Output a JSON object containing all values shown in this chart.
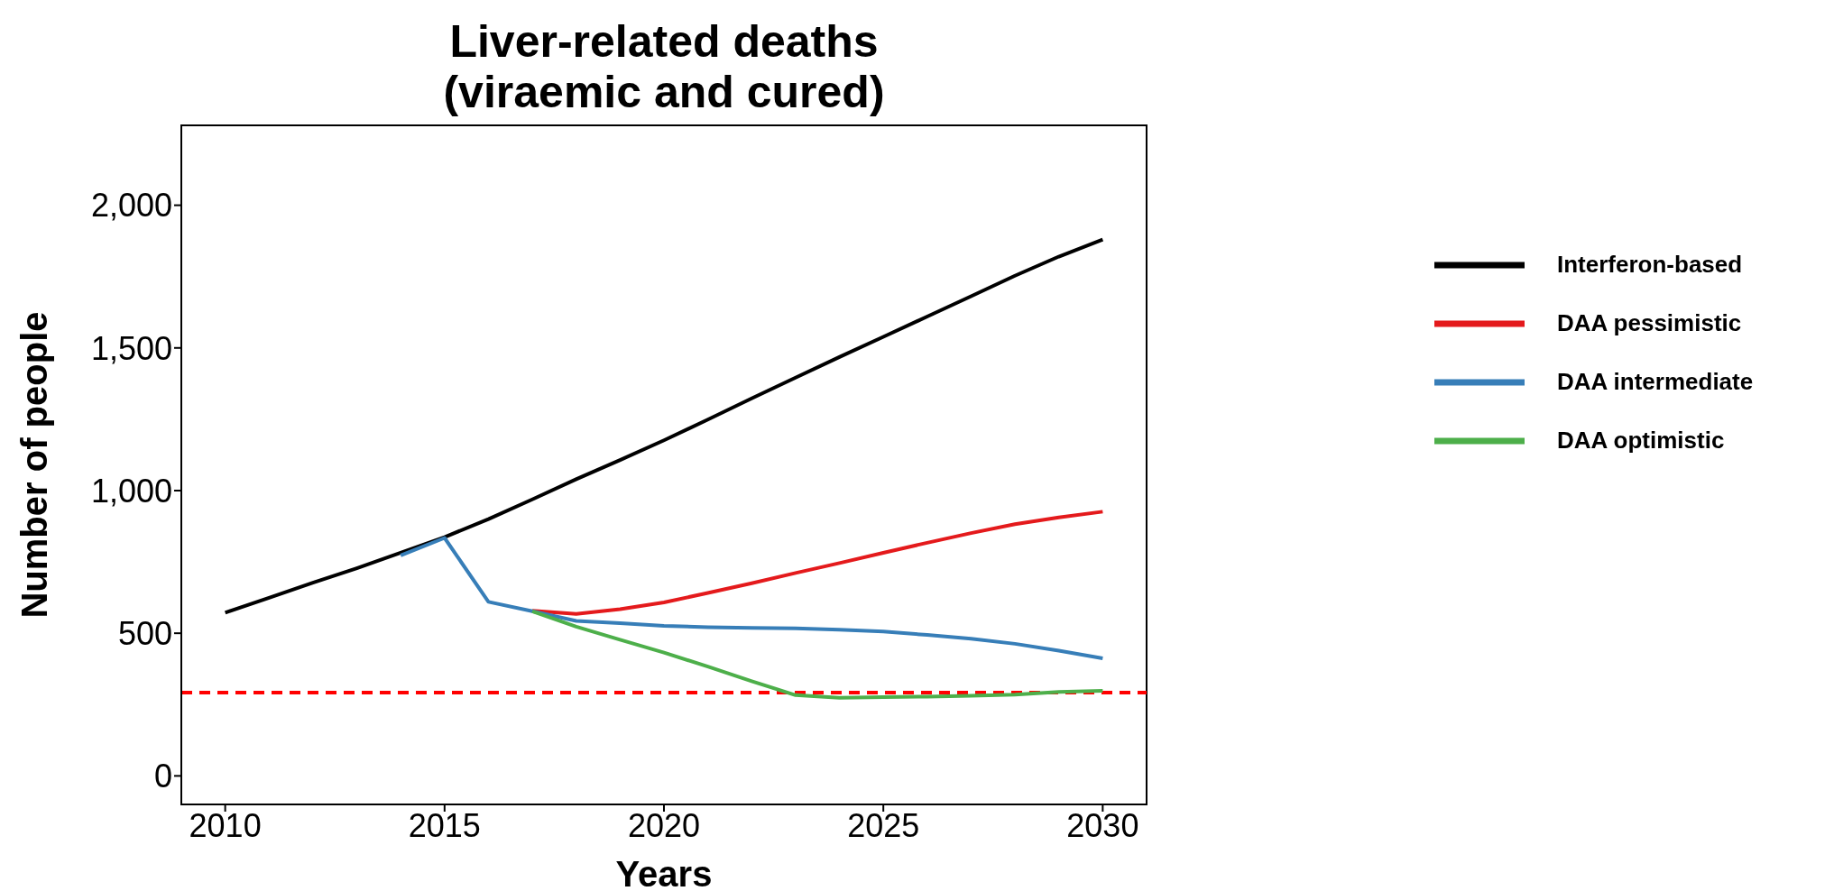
{
  "chart_data": {
    "type": "line",
    "title": "Liver-related deaths\n(viraemic and cured)",
    "xlabel": "Years",
    "ylabel": "Number of people",
    "x": [
      2010,
      2011,
      2012,
      2013,
      2014,
      2015,
      2016,
      2017,
      2018,
      2019,
      2020,
      2021,
      2022,
      2023,
      2024,
      2025,
      2026,
      2027,
      2028,
      2029,
      2030
    ],
    "series": [
      {
        "name": "Interferon-based",
        "color": "#000000",
        "values": [
          572,
          624,
          677,
          728,
          782,
          837,
          900,
          969,
          1040,
          1107,
          1176,
          1249,
          1323,
          1396,
          1468,
          1539,
          1610,
          1681,
          1753,
          1820,
          1880
        ]
      },
      {
        "name": "DAA pessimistic",
        "color": "#e41a1c",
        "values": [
          null,
          null,
          null,
          null,
          null,
          null,
          null,
          579,
          568,
          584,
          608,
          641,
          675,
          711,
          746,
          782,
          817,
          851,
          882,
          906,
          926
        ]
      },
      {
        "name": "DAA intermediate",
        "color": "#377eb8",
        "values": [
          null,
          null,
          null,
          null,
          773,
          834,
          610,
          577,
          543,
          535,
          526,
          521,
          519,
          517,
          512,
          506,
          494,
          481,
          463,
          439,
          412
        ]
      },
      {
        "name": "DAA optimistic",
        "color": "#4daf4a",
        "values": [
          null,
          null,
          null,
          null,
          null,
          null,
          null,
          577,
          523,
          477,
          432,
          383,
          332,
          283,
          274,
          276,
          278,
          281,
          285,
          294,
          298
        ]
      }
    ],
    "xlim": [
      2009,
      2031
    ],
    "xticks": [
      2010,
      2015,
      2020,
      2025,
      2030
    ],
    "ylim": [
      -100,
      2280
    ],
    "yticks": [
      0,
      500,
      {
        "value": 1000,
        "label": "1,000"
      },
      {
        "value": 1500,
        "label": "1,500"
      },
      {
        "value": 2000,
        "label": "2,000"
      }
    ],
    "ref_lines": [
      {
        "axis": "y",
        "value": 292,
        "color": "#ff0000",
        "line_style": "dashed"
      }
    ],
    "grid": false,
    "legend": "right",
    "marker": "none",
    "line_style": "solid"
  }
}
